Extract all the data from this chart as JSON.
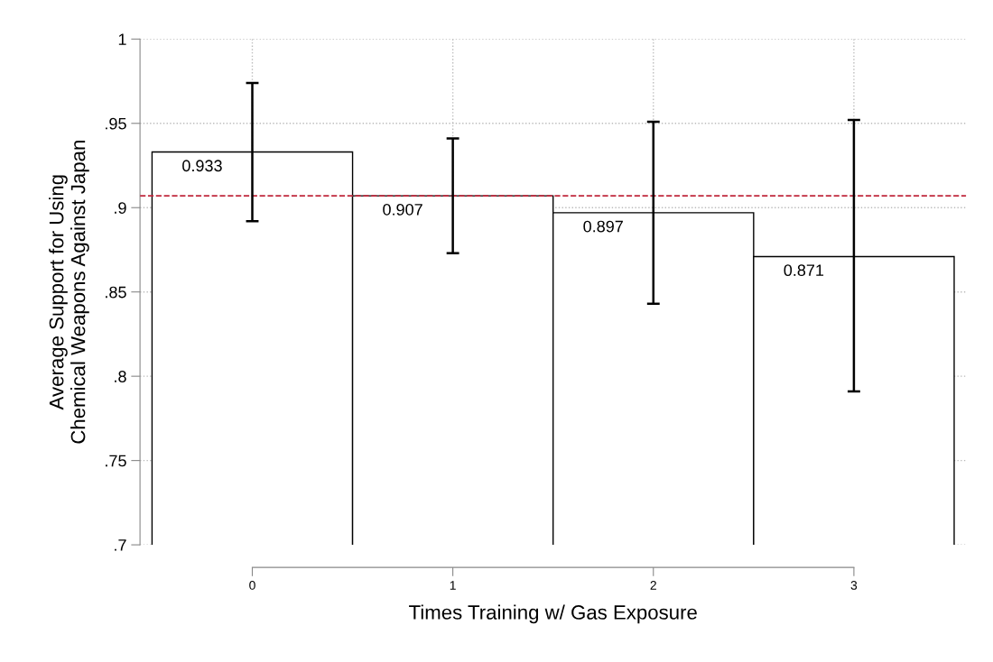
{
  "chart_data": {
    "type": "bar",
    "xlabel": "Times Training w/ Gas Exposure",
    "ylabel": "Average Support for Using\nChemical Weapons Against Japan",
    "x": [
      0,
      1,
      2,
      3
    ],
    "values": [
      0.933,
      0.907,
      0.897,
      0.871
    ],
    "errors": [
      [
        0.892,
        0.974
      ],
      [
        0.873,
        0.941
      ],
      [
        0.843,
        0.951
      ],
      [
        0.791,
        0.952
      ]
    ],
    "color": "#ffffff",
    "data_labels": true,
    "xlim": [
      -0.56,
      3.56
    ],
    "xticks": [
      0,
      1,
      2,
      3
    ],
    "ylim": [
      0.7,
      1
    ],
    "yticks": [
      {
        "value": 0.7,
        "label": ".7"
      },
      {
        "value": 0.75,
        "label": ".75"
      },
      {
        "value": 0.8,
        "label": ".8"
      },
      {
        "value": 0.85,
        "label": ".85"
      },
      {
        "value": 0.9,
        "label": ".9"
      },
      {
        "value": 0.95,
        "label": ".95"
      },
      {
        "value": 1,
        "label": "1"
      }
    ],
    "grid": true,
    "ref_lines": [
      {
        "axis": "y",
        "value": 0.907,
        "label": null,
        "color": "#c0283c",
        "line_style": "dashed"
      }
    ]
  }
}
